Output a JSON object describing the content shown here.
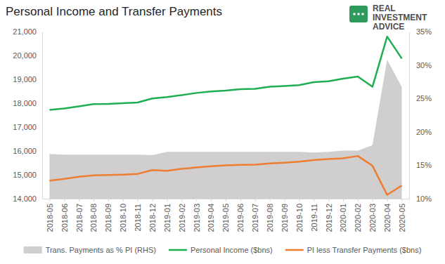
{
  "chart_data": {
    "type": "line",
    "title": "Personal Income and Transfer Payments",
    "annotations": [
      "REAL",
      "INVESTMENT",
      "ADVICE"
    ],
    "categories": [
      "2018-05",
      "2018-06",
      "2018-07",
      "2018-08",
      "2018-09",
      "2018-10",
      "2018-11",
      "2018-12",
      "2019-01",
      "2019-02",
      "2019-03",
      "2019-04",
      "2019-05",
      "2019-06",
      "2019-07",
      "2019-08",
      "2019-09",
      "2019-10",
      "2019-11",
      "2019-12",
      "2020-01",
      "2020-02",
      "2020-03",
      "2020-04",
      "2020-05"
    ],
    "series": [
      {
        "name": "Trans. Payments as % PI (RHS)",
        "type": "area",
        "axis": "y2",
        "color": "#d0cece",
        "values": [
          16.7,
          16.6,
          16.6,
          16.6,
          16.6,
          16.6,
          16.6,
          16.5,
          17.0,
          17.0,
          17.0,
          17.0,
          17.0,
          17.0,
          17.0,
          17.0,
          17.0,
          17.0,
          16.9,
          17.0,
          17.2,
          17.2,
          18.0,
          30.8,
          26.7
        ]
      },
      {
        "name": "Personal Income ($bns)",
        "type": "line",
        "color": "#1fae52",
        "values": [
          17720,
          17780,
          17870,
          17960,
          17970,
          18000,
          18030,
          18200,
          18260,
          18340,
          18430,
          18490,
          18530,
          18590,
          18600,
          18690,
          18720,
          18760,
          18880,
          18920,
          19030,
          19120,
          18690,
          20790,
          19870
        ]
      },
      {
        "name": "PI less Transfer Payments ($bns)",
        "type": "line",
        "color": "#ed7d31",
        "values": [
          14760,
          14830,
          14920,
          14980,
          14990,
          15010,
          15040,
          15200,
          15170,
          15250,
          15310,
          15360,
          15400,
          15420,
          15430,
          15480,
          15510,
          15550,
          15620,
          15660,
          15690,
          15790,
          15380,
          14160,
          14550
        ]
      }
    ],
    "ylim": [
      14000,
      21000
    ],
    "yticks": [
      {
        "value": 14000,
        "label": "14,000"
      },
      {
        "value": 15000,
        "label": "15,000"
      },
      {
        "value": 16000,
        "label": "16,000"
      },
      {
        "value": 17000,
        "label": "17,000"
      },
      {
        "value": 18000,
        "label": "18,000"
      },
      {
        "value": 19000,
        "label": "19,000"
      },
      {
        "value": 20000,
        "label": "20,000"
      },
      {
        "value": 21000,
        "label": "21,000"
      }
    ],
    "y2lim": [
      10,
      35
    ],
    "y2ticks": [
      {
        "value": 10,
        "label": "10%"
      },
      {
        "value": 15,
        "label": "15%"
      },
      {
        "value": 20,
        "label": "20%"
      },
      {
        "value": 25,
        "label": "25%"
      },
      {
        "value": 30,
        "label": "30%"
      },
      {
        "value": 35,
        "label": "35%"
      }
    ],
    "grid": false,
    "legend": "bottom"
  }
}
